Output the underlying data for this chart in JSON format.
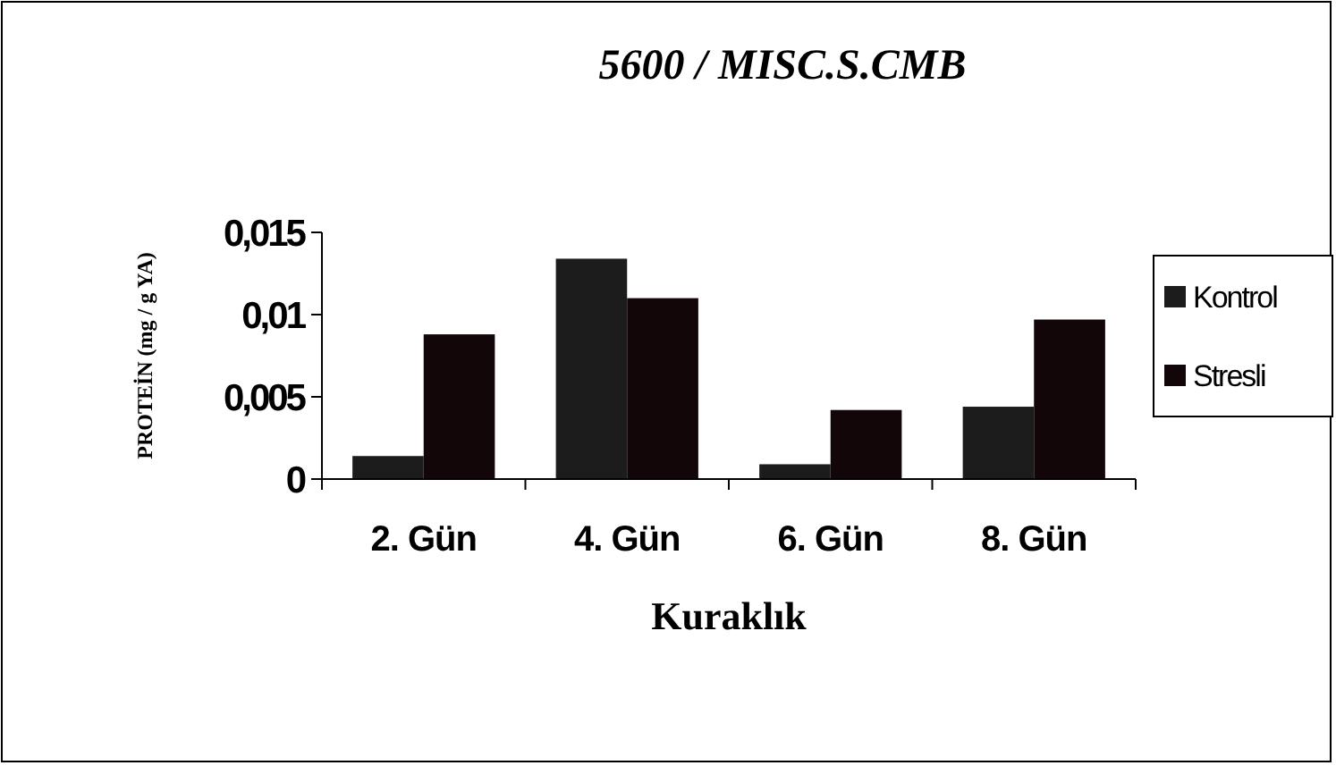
{
  "chart_data": {
    "type": "bar",
    "title": "5600 / MISC.S.CMB",
    "xlabel": "Kuraklık",
    "ylabel": "PROTEİN (mg / g YA)",
    "categories": [
      "2. Gün",
      "4. Gün",
      "6. Gün",
      "8. Gün"
    ],
    "series": [
      {
        "name": "Kontrol",
        "color": "#1c1c1c",
        "values": [
          0.0014,
          0.0134,
          0.0009,
          0.0044
        ]
      },
      {
        "name": "Stresli",
        "color": "#120608",
        "values": [
          0.0088,
          0.011,
          0.0042,
          0.0097
        ]
      }
    ],
    "ylim": [
      0,
      0.015
    ],
    "yticks": [
      0,
      {
        "value": 0.005,
        "label": "0,005"
      },
      {
        "value": 0.01,
        "label": "0,01"
      },
      {
        "value": 0.015,
        "label": "0,015"
      }
    ],
    "grid": false,
    "legend": "right"
  }
}
